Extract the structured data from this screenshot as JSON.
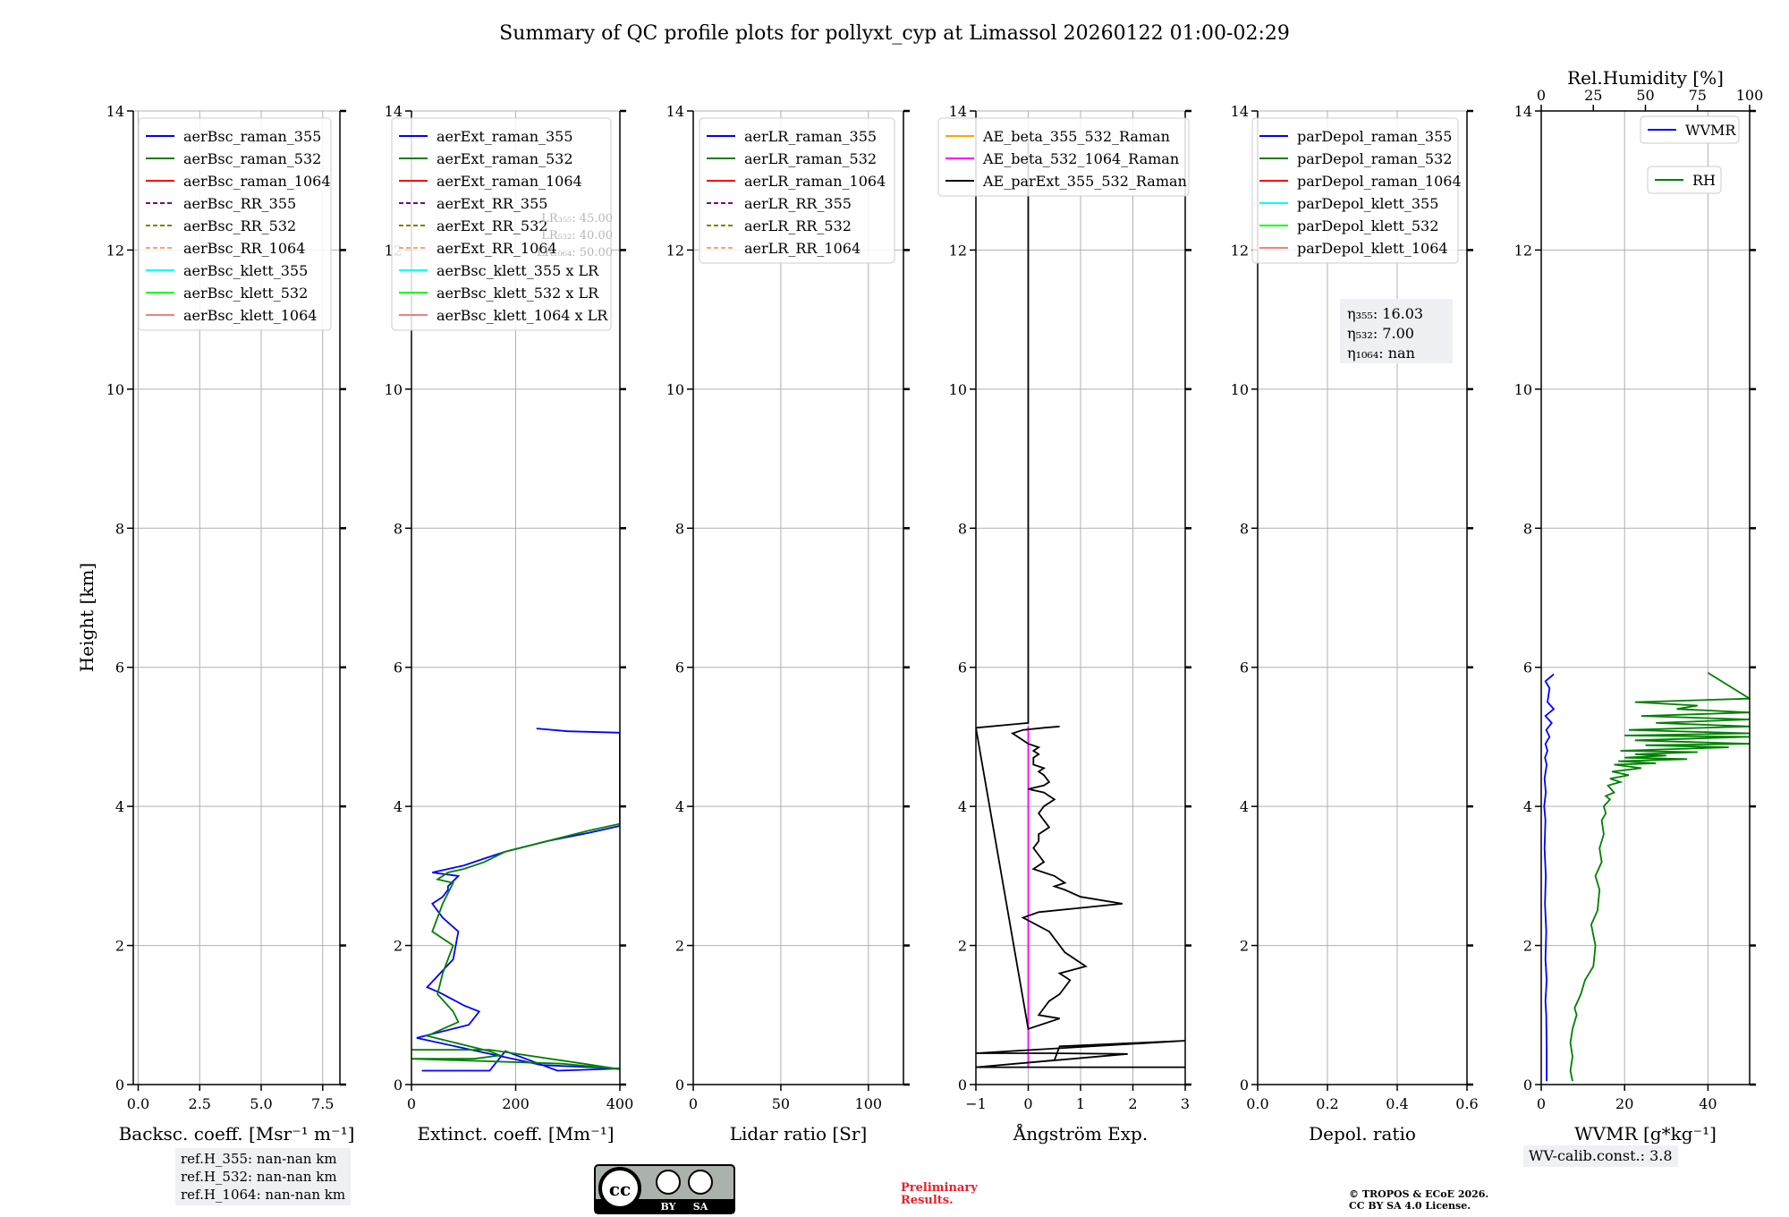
{
  "title": "Summary of QC profile plots for pollyxt_cyp at Limassol 20260122 01:00-02:29",
  "ylabel": "Height [km]",
  "colors": {
    "blue": "#0000ff",
    "green": "#008000",
    "red": "#ff0000",
    "purple": "#800080",
    "olive": "#808000",
    "salmon": "#ffa07a",
    "cyan": "#00ffff",
    "lime": "#00ff00",
    "lightcoral": "#f08080",
    "orange": "#ffa500",
    "magenta": "#ff00ff",
    "black": "#000000",
    "grid": "#b0b0b0"
  },
  "chart_data": [
    {
      "type": "line",
      "title": "",
      "xlabel": "Backsc. coeff. [Msr⁻¹ m⁻¹]",
      "ylabel": "Height [km]",
      "xlim": [
        -0.2,
        8.2
      ],
      "ylim": [
        0,
        14
      ],
      "xticks": [
        0,
        2.5,
        5,
        7.5
      ],
      "xtick_labels": [
        "0.0",
        "2.5",
        "5.0",
        "7.5"
      ],
      "yticks": [
        0,
        2,
        4,
        6,
        8,
        10,
        12,
        14
      ],
      "ytick_labels": [
        "0",
        "2",
        "4",
        "6",
        "8",
        "10",
        "12",
        "14"
      ],
      "legend": [
        {
          "label": "aerBsc_raman_355",
          "color": "blue",
          "dash": false
        },
        {
          "label": "aerBsc_raman_532",
          "color": "green",
          "dash": false
        },
        {
          "label": "aerBsc_raman_1064",
          "color": "red",
          "dash": false
        },
        {
          "label": "aerBsc_RR_355",
          "color": "purple",
          "dash": true
        },
        {
          "label": "aerBsc_RR_532",
          "color": "olive",
          "dash": true
        },
        {
          "label": "aerBsc_RR_1064",
          "color": "salmon",
          "dash": true
        },
        {
          "label": "aerBsc_klett_355",
          "color": "cyan",
          "dash": false
        },
        {
          "label": "aerBsc_klett_532",
          "color": "lime",
          "dash": false
        },
        {
          "label": "aerBsc_klett_1064",
          "color": "lightcoral",
          "dash": false
        }
      ],
      "legend_location": "top-right",
      "series": []
    },
    {
      "type": "line",
      "title": "",
      "xlabel": "Extinct. coeff. [Mm⁻¹]",
      "ylabel": "",
      "xlim": [
        0,
        400
      ],
      "ylim": [
        0,
        14
      ],
      "xticks": [
        0,
        200,
        400
      ],
      "xtick_labels": [
        "0",
        "200",
        "400"
      ],
      "yticks": [
        0,
        2,
        4,
        6,
        8,
        10,
        12,
        14
      ],
      "ytick_labels": [
        "0",
        "2",
        "4",
        "6",
        "8",
        "10",
        "12",
        "14"
      ],
      "legend": [
        {
          "label": "aerExt_raman_355",
          "color": "blue",
          "dash": false
        },
        {
          "label": "aerExt_raman_532",
          "color": "green",
          "dash": false
        },
        {
          "label": "aerExt_raman_1064",
          "color": "red",
          "dash": false
        },
        {
          "label": "aerExt_RR_355",
          "color": "purple",
          "dash": true
        },
        {
          "label": "aerExt_RR_532",
          "color": "olive",
          "dash": true
        },
        {
          "label": "aerExt_RR_1064",
          "color": "salmon",
          "dash": true
        },
        {
          "label": "aerBsc_klett_355 x LR",
          "color": "cyan",
          "dash": false
        },
        {
          "label": "aerBsc_klett_532 x LR",
          "color": "lime",
          "dash": false
        },
        {
          "label": "aerBsc_klett_1064 x LR",
          "color": "lightcoral",
          "dash": false
        }
      ],
      "legend_location": "top-right",
      "annotation": [
        "LR₃₅₅: 45.00",
        "LR₅₃₂: 40.00",
        "LR₁₀₆₄: 50.00"
      ],
      "series": [
        {
          "name": "aerExt_raman_355",
          "color": "blue",
          "x": [
            20,
            150,
            180,
            280,
            400,
            250,
            10,
            110,
            130,
            100,
            55,
            30,
            80,
            90,
            60,
            40,
            60,
            70,
            70,
            90,
            40,
            70,
            100,
            140,
            180,
            260,
            340,
            400,
            400,
            300,
            240
          ],
          "y": [
            0.2,
            0.2,
            0.48,
            0.2,
            0.23,
            0.28,
            0.67,
            0.86,
            1.05,
            1.14,
            1.32,
            1.4,
            1.8,
            2.2,
            2.4,
            2.6,
            2.7,
            2.8,
            2.85,
            3.0,
            3.05,
            3.1,
            3.15,
            3.25,
            3.35,
            3.5,
            3.62,
            3.72,
            5.06,
            5.08,
            5.12
          ]
        },
        {
          "name": "aerExt_raman_532",
          "color": "green",
          "x": [
            0,
            150,
            330,
            400,
            290,
            0,
            120,
            170,
            150,
            30,
            90,
            80,
            50,
            60,
            80,
            40,
            60,
            80,
            50,
            70,
            100,
            140,
            180,
            260,
            340,
            400
          ],
          "y": [
            0.5,
            0.5,
            0.3,
            0.22,
            0.3,
            0.37,
            0.37,
            0.42,
            0.48,
            0.7,
            0.9,
            1.05,
            1.3,
            1.6,
            2.0,
            2.2,
            2.6,
            2.9,
            2.95,
            3.05,
            3.1,
            3.2,
            3.35,
            3.5,
            3.65,
            3.75
          ]
        }
      ]
    },
    {
      "type": "line",
      "title": "",
      "xlabel": "Lidar ratio [Sr]",
      "ylabel": "",
      "xlim": [
        0,
        120
      ],
      "ylim": [
        0,
        14
      ],
      "xticks": [
        0,
        50,
        100
      ],
      "xtick_labels": [
        "0",
        "50",
        "100"
      ],
      "yticks": [
        0,
        2,
        4,
        6,
        8,
        10,
        12,
        14
      ],
      "ytick_labels": [
        "0",
        "2",
        "4",
        "6",
        "8",
        "10",
        "12",
        "14"
      ],
      "legend": [
        {
          "label": "aerLR_raman_355",
          "color": "blue",
          "dash": false
        },
        {
          "label": "aerLR_raman_532",
          "color": "green",
          "dash": false
        },
        {
          "label": "aerLR_raman_1064",
          "color": "red",
          "dash": false
        },
        {
          "label": "aerLR_RR_355",
          "color": "purple",
          "dash": true
        },
        {
          "label": "aerLR_RR_532",
          "color": "olive",
          "dash": true
        },
        {
          "label": "aerLR_RR_1064",
          "color": "salmon",
          "dash": true
        }
      ],
      "legend_location": "top-right",
      "series": []
    },
    {
      "type": "line",
      "title": "",
      "xlabel": "Ångström Exp.",
      "ylabel": "",
      "xlim": [
        -1,
        3
      ],
      "ylim": [
        0,
        14
      ],
      "xticks": [
        -1,
        0,
        1,
        2,
        3
      ],
      "xtick_labels": [
        "−1",
        "0",
        "1",
        "2",
        "3"
      ],
      "yticks": [
        0,
        2,
        4,
        6,
        8,
        10,
        12,
        14
      ],
      "ytick_labels": [
        "0",
        "2",
        "4",
        "6",
        "8",
        "10",
        "12",
        "14"
      ],
      "legend": [
        {
          "label": "AE_beta_355_532_Raman",
          "color": "orange",
          "dash": false
        },
        {
          "label": "AE_beta_532_1064_Raman",
          "color": "magenta",
          "dash": false
        },
        {
          "label": "AE_parExt_355_532_Raman",
          "color": "black",
          "dash": false
        }
      ],
      "legend_location": "top-center",
      "series": [
        {
          "name": "AE_beta_532_1064_Raman",
          "color": "magenta",
          "x": [
            0,
            0
          ],
          "y": [
            0.25,
            5.15
          ]
        },
        {
          "name": "AE_parExt_355_532_Raman",
          "color": "black",
          "x": [
            0,
            0,
            -1,
            0.0,
            0.6,
            0.2,
            0.3,
            0.4,
            0.6,
            0.8,
            0.6,
            1.1,
            0.7,
            0.4,
            -0.1,
            0.2,
            1.8,
            1.0,
            0.7,
            0.5,
            0.7,
            0.5,
            0.1,
            0.3,
            0.2,
            0.1,
            0.2,
            0.2,
            0.4,
            0.3,
            0.2,
            0.3,
            0.5,
            0.3,
            0.0,
            0.3,
            0.4,
            0.3,
            0.2,
            0.3,
            0.1,
            0.1,
            0.2,
            0.1,
            0.2,
            0.0,
            -0.1,
            -0.2,
            -0.3,
            -0.1,
            0.3,
            0.6
          ],
          "y": [
            13.6,
            5.2,
            5.13,
            0.8,
            0.95,
            1.0,
            1.1,
            1.2,
            1.3,
            1.5,
            1.6,
            1.7,
            1.9,
            2.2,
            2.4,
            2.48,
            2.6,
            2.7,
            2.8,
            2.85,
            2.9,
            3.0,
            3.1,
            3.2,
            3.3,
            3.4,
            3.5,
            3.6,
            3.7,
            3.8,
            3.9,
            4.0,
            4.1,
            4.2,
            4.25,
            4.3,
            4.35,
            4.45,
            4.5,
            4.55,
            4.6,
            4.7,
            4.75,
            4.8,
            4.85,
            4.9,
            4.95,
            5.0,
            5.05,
            5.1,
            5.13,
            5.15
          ]
        },
        {
          "name": "AE_parExt_355_532_Raman_low",
          "color": "black",
          "x": [
            -1,
            0.5,
            0.6,
            3,
            -1,
            0.4,
            1.9,
            -1,
            3
          ],
          "y": [
            0.25,
            0.35,
            0.55,
            0.63,
            0.45,
            0.45,
            0.44,
            0.25,
            0.25
          ]
        }
      ]
    },
    {
      "type": "line",
      "title": "",
      "xlabel": "Depol. ratio",
      "ylabel": "",
      "xlim": [
        0,
        0.6
      ],
      "ylim": [
        0,
        14
      ],
      "xticks": [
        0,
        0.2,
        0.4,
        0.6
      ],
      "xtick_labels": [
        "0.0",
        "0.2",
        "0.4",
        "0.6"
      ],
      "yticks": [
        0,
        2,
        4,
        6,
        8,
        10,
        12,
        14
      ],
      "ytick_labels": [
        "0",
        "2",
        "4",
        "6",
        "8",
        "10",
        "12",
        "14"
      ],
      "legend": [
        {
          "label": "parDepol_raman_355",
          "color": "blue",
          "dash": false
        },
        {
          "label": "parDepol_raman_532",
          "color": "green",
          "dash": false
        },
        {
          "label": "parDepol_raman_1064",
          "color": "red",
          "dash": false
        },
        {
          "label": "parDepol_klett_355",
          "color": "cyan",
          "dash": false
        },
        {
          "label": "parDepol_klett_532",
          "color": "lime",
          "dash": false
        },
        {
          "label": "parDepol_klett_1064",
          "color": "lightcoral",
          "dash": false
        }
      ],
      "legend_location": "top-right",
      "annotation": [
        "η₃₅₅: 16.03",
        "η₅₃₂: 7.00",
        "η₁₀₆₄: nan"
      ],
      "series": []
    },
    {
      "type": "line",
      "title": "",
      "xlabel": "WVMR [g*kg⁻¹]",
      "ylabel": "",
      "xlim": [
        0,
        50
      ],
      "ylim": [
        0,
        14
      ],
      "xticks": [
        0,
        20,
        40
      ],
      "xtick_labels": [
        "0",
        "20",
        "40"
      ],
      "yticks": [
        0,
        2,
        4,
        6,
        8,
        10,
        12,
        14
      ],
      "ytick_labels": [
        "0",
        "2",
        "4",
        "6",
        "8",
        "10",
        "12",
        "14"
      ],
      "top_axis": {
        "label": "Rel.Humidity [%]",
        "range": [
          0,
          100
        ],
        "ticks": [
          0,
          25,
          50,
          75,
          100
        ],
        "tick_labels": [
          "0",
          "25",
          "50",
          "75",
          "100"
        ]
      },
      "legend": [
        {
          "label": "WVMR",
          "color": "blue",
          "dash": false
        },
        {
          "label": "RH",
          "color": "green",
          "dash": false
        }
      ],
      "legend_location": "top-right",
      "series": [
        {
          "name": "WVMR",
          "color": "blue",
          "axis": "bottom",
          "x": [
            1.3,
            1.3,
            1.2,
            1.0,
            1.3,
            1.0,
            1.2,
            0.9,
            1.1,
            0.8,
            1.0,
            0.7,
            1.1,
            0.8,
            1.3,
            0.9,
            1.5,
            1.0,
            2.0,
            1.2,
            2.5,
            1.0,
            3.0,
            1.5,
            2.0,
            1.0,
            3.0
          ],
          "y": [
            0.05,
            0.5,
            1.0,
            1.2,
            1.5,
            1.8,
            2.2,
            2.6,
            3.0,
            3.4,
            3.8,
            4.0,
            4.2,
            4.4,
            4.6,
            4.7,
            4.8,
            4.9,
            5.0,
            5.1,
            5.2,
            5.3,
            5.4,
            5.5,
            5.7,
            5.8,
            5.9
          ]
        },
        {
          "name": "RH",
          "color": "green",
          "axis": "top",
          "x": [
            15,
            14,
            15,
            14,
            15,
            17,
            16,
            19,
            21,
            25,
            26,
            24,
            27,
            28,
            26,
            29,
            28,
            30,
            29,
            31,
            30,
            33,
            31,
            35,
            32,
            38,
            33,
            42,
            34,
            48,
            35,
            55,
            37,
            70,
            40,
            60,
            45,
            75,
            38,
            90,
            50,
            100,
            45,
            100,
            40,
            100,
            42,
            100,
            55,
            100,
            48,
            100,
            65,
            75,
            45,
            100,
            80
          ],
          "y": [
            0.05,
            0.2,
            0.4,
            0.6,
            0.8,
            1.0,
            1.1,
            1.3,
            1.5,
            1.7,
            2.0,
            2.3,
            2.5,
            2.8,
            3.0,
            3.2,
            3.4,
            3.6,
            3.8,
            3.9,
            4.0,
            4.1,
            4.15,
            4.2,
            4.3,
            4.35,
            4.4,
            4.45,
            4.5,
            4.55,
            4.6,
            4.62,
            4.65,
            4.68,
            4.7,
            4.73,
            4.75,
            4.78,
            4.8,
            4.85,
            4.88,
            4.9,
            4.95,
            5.0,
            5.02,
            5.05,
            5.1,
            5.15,
            5.2,
            5.25,
            5.3,
            5.35,
            5.4,
            5.45,
            5.5,
            5.55,
            5.92
          ]
        }
      ],
      "annotation": [
        "WV-calib.const.: 3.8"
      ]
    }
  ],
  "footer": {
    "ref_lines": [
      "ref.H_355: nan-nan km",
      "ref.H_532: nan-nan km",
      "ref.H_1064: nan-nan km"
    ],
    "wv_calib": "WV-calib.const.: 3.8",
    "preliminary": [
      "Preliminary",
      "Results."
    ],
    "copyright": [
      "© TROPOS & ECoE 2026.",
      "CC BY SA 4.0 License."
    ],
    "license_badge": [
      "cc",
      "BY",
      "SA"
    ]
  }
}
